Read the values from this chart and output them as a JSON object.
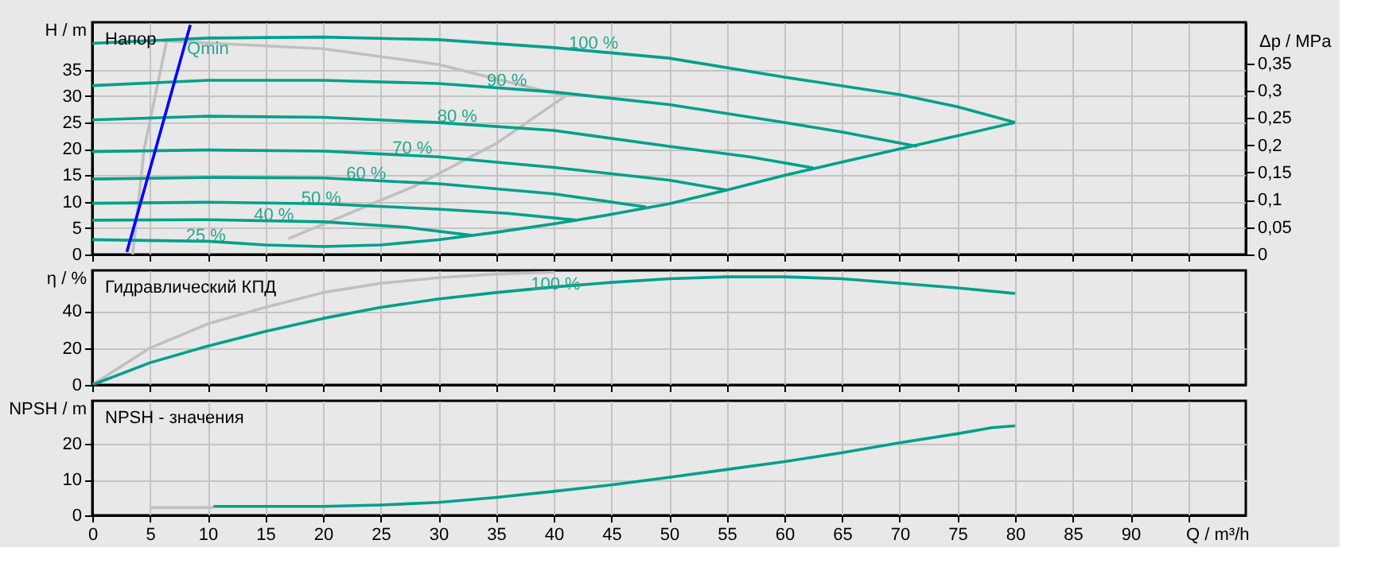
{
  "chart_data": [
    {
      "type": "line",
      "ylabel": "H / m",
      "y2label": "Δp / MPa",
      "xlim": [
        0,
        100
      ],
      "ylim": [
        0,
        44
      ],
      "y2lim": [
        0,
        0.425
      ],
      "xticks": [
        0,
        5,
        10,
        15,
        20,
        25,
        30,
        35,
        40,
        45,
        50,
        55,
        60,
        65,
        70,
        75,
        80,
        85,
        90,
        95
      ],
      "yticks": [
        0,
        5,
        10,
        15,
        20,
        25,
        30,
        35
      ],
      "y2ticks": [
        0,
        {
          "value": 0.05,
          "label": "0,05"
        },
        {
          "value": 0.1,
          "label": "0,1"
        },
        {
          "value": 0.15,
          "label": "0,15"
        },
        {
          "value": 0.2,
          "label": "0,2"
        },
        {
          "value": 0.25,
          "label": "0,25"
        },
        {
          "value": 0.3,
          "label": "0,3"
        },
        {
          "value": 0.35,
          "label": "0,35"
        }
      ],
      "tick_labels": "y",
      "grid": true,
      "series": [
        {
          "color": "#c0c0c0",
          "x": [
            3.5,
            4.5,
            6.5
          ],
          "values": [
            0,
            20,
            41
          ]
        },
        {
          "color": "#c0c0c0",
          "x": [
            17,
            28,
            35,
            41
          ],
          "values": [
            3,
            13,
            21,
            30
          ]
        },
        {
          "color": "#c0c0c0",
          "x": [
            6,
            20,
            30,
            41
          ],
          "values": [
            40.5,
            39,
            36,
            30
          ]
        },
        {
          "color": "#00a08a",
          "x": [
            0,
            10,
            20,
            30,
            40,
            50,
            60,
            70,
            75,
            80
          ],
          "values": [
            40,
            41,
            41.2,
            40.7,
            39.2,
            37.2,
            33.6,
            30.3,
            28,
            25
          ]
        },
        {
          "color": "#00a08a",
          "x": [
            0,
            10,
            20,
            30,
            40,
            50,
            60,
            65,
            71.5
          ],
          "values": [
            32,
            33,
            33,
            32.4,
            30.8,
            28.4,
            25,
            23.2,
            20.5
          ]
        },
        {
          "color": "#00a08a",
          "x": [
            0,
            10,
            20,
            30,
            40,
            50,
            57,
            62.5
          ],
          "values": [
            25.5,
            26.2,
            26,
            25,
            23.5,
            20.5,
            18.5,
            16.4
          ]
        },
        {
          "color": "#00a08a",
          "x": [
            0,
            10,
            20,
            30,
            40,
            50,
            55
          ],
          "values": [
            19.5,
            19.8,
            19.6,
            18.5,
            16.5,
            14.1,
            12.2
          ]
        },
        {
          "color": "#00a08a",
          "x": [
            0,
            10,
            20,
            30,
            40,
            48
          ],
          "values": [
            14.3,
            14.6,
            14.5,
            13.4,
            11.5,
            9
          ]
        },
        {
          "color": "#00a08a",
          "x": [
            0,
            10,
            20,
            30,
            36,
            42
          ],
          "values": [
            9.7,
            9.9,
            9.6,
            8.6,
            7.8,
            6.5
          ]
        },
        {
          "color": "#00a08a",
          "x": [
            0,
            10,
            20,
            27,
            33
          ],
          "values": [
            6.5,
            6.6,
            6.2,
            5.2,
            3.6
          ]
        },
        {
          "color": "#00a08a",
          "x": [
            0,
            10,
            15,
            20,
            25,
            30,
            35,
            40,
            45,
            50,
            55,
            60,
            65,
            70,
            75,
            80
          ],
          "values": [
            2.8,
            2.5,
            1.8,
            1.5,
            1.8,
            2.8,
            4.2,
            5.8,
            7.6,
            9.6,
            12.2,
            15,
            17.5,
            20,
            22.5,
            25
          ]
        },
        {
          "color": "#0000ff",
          "x": [
            3,
            8.5
          ],
          "values": [
            0.5,
            43.5
          ]
        }
      ],
      "annotations": [
        "Напор",
        {
          "text": "Qmin",
          "x": 7.8,
          "y": 38
        },
        {
          "text": "100 %",
          "x": 40.9,
          "y": 39
        },
        {
          "text": "90 %",
          "x": 33.8,
          "y": 31.9
        },
        {
          "text": "80 %",
          "x": 29.5,
          "y": 25.1
        },
        {
          "text": "70 %",
          "x": 25.6,
          "y": 19.1
        },
        {
          "text": "60 %",
          "x": 21.6,
          "y": 14.3
        },
        {
          "text": "50 %",
          "x": 17.7,
          "y": 9.7
        },
        {
          "text": "40 %",
          "x": 13.6,
          "y": 6.5
        },
        {
          "text": "25 %",
          "x": 7.7,
          "y": 2.6
        }
      ]
    },
    {
      "type": "line",
      "ylabel": "η / %",
      "xlim": [
        0,
        100
      ],
      "ylim": [
        0,
        62
      ],
      "xticks": [
        0,
        5,
        10,
        15,
        20,
        25,
        30,
        35,
        40,
        45,
        50,
        55,
        60,
        65,
        70,
        75,
        80,
        85,
        90,
        95
      ],
      "yticks": [
        0,
        20,
        40
      ],
      "tick_labels": "y",
      "grid": true,
      "series": [
        {
          "color": "#c0c0c0",
          "x": [
            0,
            5,
            10,
            15,
            20,
            25,
            30,
            35,
            40
          ],
          "values": [
            0,
            20,
            33,
            42,
            50,
            55,
            58,
            60,
            61
          ]
        },
        {
          "color": "#00a08a",
          "x": [
            0,
            5,
            10,
            15,
            20,
            25,
            30,
            35,
            40,
            45,
            50,
            55,
            60,
            65,
            70,
            75,
            80
          ],
          "values": [
            0,
            12,
            21,
            29,
            36,
            42,
            46.5,
            50,
            53,
            55.5,
            57.5,
            58.5,
            58.5,
            57.5,
            55,
            52.5,
            49.5
          ]
        }
      ],
      "annotations": [
        "Гидравлический КПД",
        {
          "text": "100 %",
          "x": 37.6,
          "y": 51.6
        }
      ]
    },
    {
      "type": "line",
      "ylabel": "NPSH / m",
      "xlabel": "Q / m³/h",
      "xlim": [
        0,
        100
      ],
      "ylim": [
        0,
        32
      ],
      "xticks": [
        0,
        5,
        10,
        15,
        20,
        25,
        30,
        35,
        40,
        45,
        50,
        55,
        60,
        65,
        70,
        75,
        80,
        85,
        90,
        {
          "value": 95,
          "label": null
        }
      ],
      "yticks": [
        0,
        10,
        20
      ],
      "grid": true,
      "series": [
        {
          "color": "#c0c0c0",
          "x": [
            5,
            10.5
          ],
          "values": [
            2.2,
            2.2
          ]
        },
        {
          "color": "#00a08a",
          "x": [
            10.5,
            20,
            25,
            30,
            35,
            40,
            45,
            50,
            55,
            60,
            65,
            70,
            75,
            78,
            80
          ],
          "values": [
            2.5,
            2.5,
            2.9,
            3.6,
            5,
            6.7,
            8.5,
            10.6,
            12.8,
            15,
            17.5,
            20.3,
            22.8,
            24.5,
            25
          ]
        }
      ],
      "annotations": [
        "NPSH - значения"
      ]
    }
  ]
}
